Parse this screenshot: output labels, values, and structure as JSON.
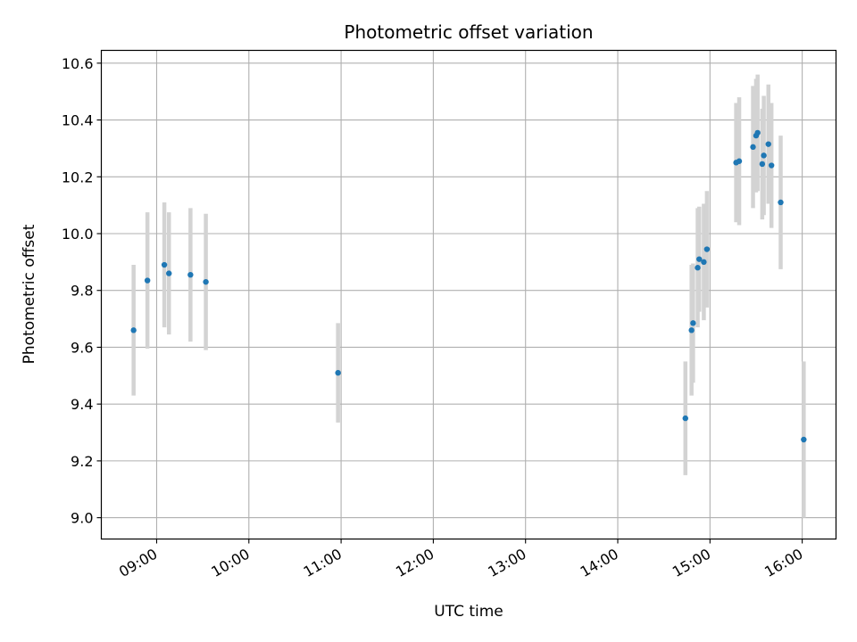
{
  "chart_data": {
    "type": "scatter",
    "title": "Photometric offset variation",
    "xlabel": "UTC time",
    "ylabel": "Photometric offset",
    "xlim": [
      "08:24",
      "16:22"
    ],
    "ylim": [
      8.925,
      10.645
    ],
    "x_ticks": [
      "09:00",
      "10:00",
      "11:00",
      "12:00",
      "13:00",
      "14:00",
      "15:00",
      "16:00"
    ],
    "y_ticks": [
      9.0,
      9.2,
      9.4,
      9.6,
      9.8,
      10.0,
      10.2,
      10.4,
      10.6
    ],
    "grid": true,
    "marker_color": "#1f77b4",
    "errorbar_color": "#d3d3d3",
    "series": [
      {
        "points": [
          {
            "x": "08:45",
            "y": 9.66,
            "err": 0.23
          },
          {
            "x": "08:54",
            "y": 9.835,
            "err": 0.24
          },
          {
            "x": "09:05",
            "y": 9.89,
            "err": 0.22
          },
          {
            "x": "09:08",
            "y": 9.86,
            "err": 0.215
          },
          {
            "x": "09:22",
            "y": 9.855,
            "err": 0.235
          },
          {
            "x": "09:32",
            "y": 9.83,
            "err": 0.24
          },
          {
            "x": "10:58",
            "y": 9.51,
            "err": 0.175
          },
          {
            "x": "14:44",
            "y": 9.35,
            "err": 0.2
          },
          {
            "x": "14:48",
            "y": 9.66,
            "err": 0.23
          },
          {
            "x": "14:49",
            "y": 9.685,
            "err": 0.21
          },
          {
            "x": "14:52",
            "y": 9.88,
            "err": 0.21
          },
          {
            "x": "14:53",
            "y": 9.91,
            "err": 0.185
          },
          {
            "x": "14:56",
            "y": 9.9,
            "err": 0.205
          },
          {
            "x": "14:58",
            "y": 9.945,
            "err": 0.205
          },
          {
            "x": "15:17",
            "y": 10.25,
            "err": 0.21
          },
          {
            "x": "15:19",
            "y": 10.255,
            "err": 0.225
          },
          {
            "x": "15:28",
            "y": 10.305,
            "err": 0.215
          },
          {
            "x": "15:30",
            "y": 10.345,
            "err": 0.2
          },
          {
            "x": "15:31",
            "y": 10.355,
            "err": 0.205
          },
          {
            "x": "15:34",
            "y": 10.245,
            "err": 0.195
          },
          {
            "x": "15:35",
            "y": 10.275,
            "err": 0.21
          },
          {
            "x": "15:38",
            "y": 10.315,
            "err": 0.21
          },
          {
            "x": "15:40",
            "y": 10.24,
            "err": 0.22
          },
          {
            "x": "15:46",
            "y": 10.11,
            "err": 0.235
          },
          {
            "x": "16:01",
            "y": 9.275,
            "err": 0.275
          }
        ]
      }
    ]
  }
}
